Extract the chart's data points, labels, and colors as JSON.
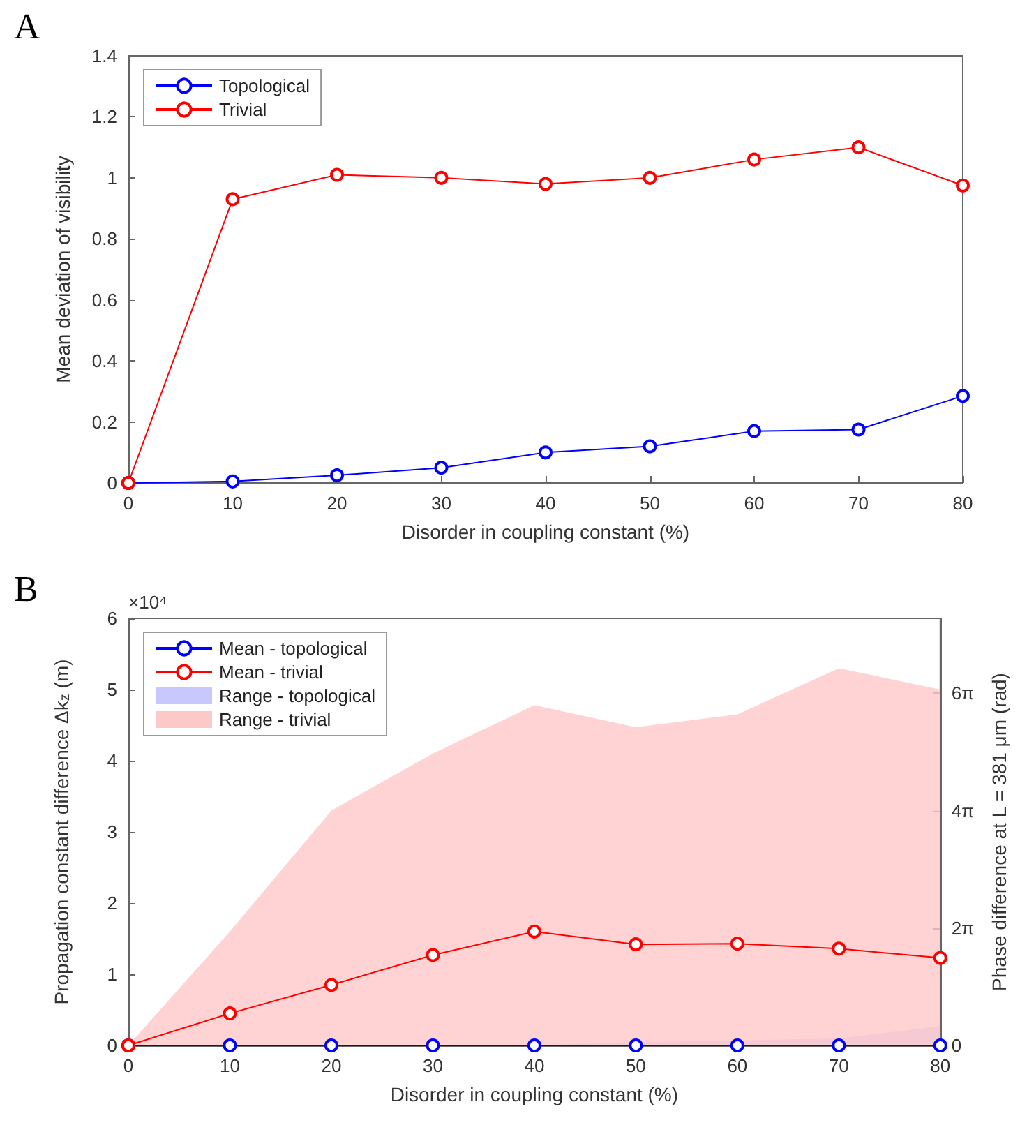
{
  "chart_data": [
    {
      "type": "line",
      "title": "A",
      "xlabel": "Disorder in coupling constant (%)",
      "ylabel": "Mean deviation of visibility",
      "x": [
        0,
        10,
        20,
        30,
        40,
        50,
        60,
        70,
        80
      ],
      "xlim": [
        0,
        80
      ],
      "xticks": [
        0,
        10,
        20,
        30,
        40,
        50,
        60,
        70,
        80
      ],
      "ylim": [
        0,
        1.4
      ],
      "yticks": [
        0,
        0.2,
        0.4,
        0.6,
        0.8,
        1,
        1.2,
        1.4
      ],
      "legend": "top left",
      "marker": "circle",
      "line_style": "solid",
      "grid": false,
      "series": [
        {
          "name": "Topological",
          "color": "#0000ff",
          "values": [
            0,
            0.005,
            0.025,
            0.05,
            0.1,
            0.12,
            0.17,
            0.175,
            0.285
          ]
        },
        {
          "name": "Trivial",
          "color": "#ff0000",
          "values": [
            0,
            0.93,
            1.01,
            1.0,
            0.98,
            1.0,
            1.06,
            1.1,
            0.975
          ]
        }
      ]
    },
    {
      "type": "line",
      "title": "B",
      "xlabel": "Disorder in coupling constant (%)",
      "ylabel": "Propagation constant difference Δk$_{z}$ (m)",
      "y2label": "Phase difference at L = 381 μm (rad)",
      "annotations": [
        "×10⁴"
      ],
      "x": [
        0,
        10,
        20,
        30,
        40,
        50,
        60,
        70,
        80
      ],
      "xlim": [
        0,
        80
      ],
      "xticks": [
        0,
        10,
        20,
        30,
        40,
        50,
        60,
        70,
        80
      ],
      "ylim": [
        0,
        6
      ],
      "yticks": [
        0,
        1,
        2,
        3,
        4,
        5,
        6
      ],
      "y2lim": [
        0,
        22.86
      ],
      "y2ticks": [
        {
          "value": 0,
          "label": "0"
        },
        {
          "value": 6.283,
          "label": "2π"
        },
        {
          "value": 12.566,
          "label": "4π"
        },
        {
          "value": 18.85,
          "label": "6π"
        }
      ],
      "legend": "top left",
      "marker": "circle",
      "line_style": "solid",
      "grid": false,
      "series": [
        {
          "name": "Mean - topological",
          "color": "#0000ff",
          "values": [
            0,
            0,
            0,
            0,
            0,
            0,
            0,
            0,
            0
          ]
        },
        {
          "name": "Mean - trivial",
          "color": "#ff0000",
          "values": [
            0,
            0.45,
            0.85,
            1.27,
            1.6,
            1.42,
            1.43,
            1.36,
            1.23
          ]
        },
        {
          "name": "Range - topological",
          "type": "area",
          "color": "#c8c8ff",
          "marker": "none",
          "values": [
            0,
            0,
            0,
            0,
            0,
            0.05,
            0.07,
            0.1,
            0.27
          ]
        },
        {
          "name": "Range - trivial",
          "type": "area",
          "color": "#ffc8c8",
          "marker": "none",
          "values": [
            0,
            1.6,
            3.3,
            4.1,
            4.78,
            4.47,
            4.65,
            5.3,
            5.0
          ]
        }
      ]
    }
  ]
}
